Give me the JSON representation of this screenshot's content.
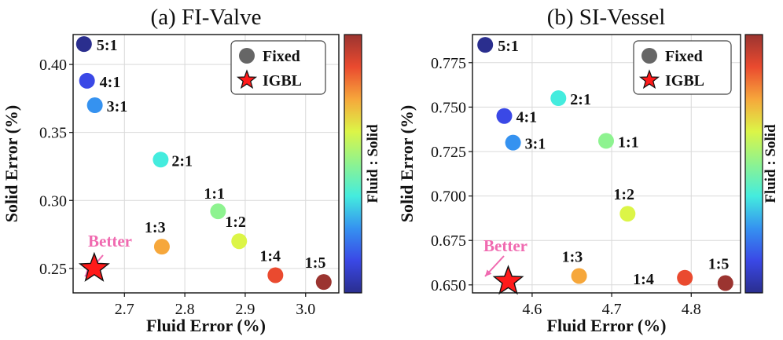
{
  "chart_data": [
    {
      "type": "scatter",
      "title": "(a) FI-Valve",
      "xlabel": "Fluid Error (%)",
      "ylabel": "Solid Error (%)",
      "xlim": [
        2.615,
        3.055
      ],
      "ylim": [
        0.232,
        0.422
      ],
      "xticks": [
        2.7,
        2.8,
        2.9,
        3.0
      ],
      "xtick_labels": [
        "2.7",
        "2.8",
        "2.9",
        "3.0"
      ],
      "yticks": [
        0.25,
        0.3,
        0.35,
        0.4
      ],
      "ytick_labels": [
        "0.25",
        "0.30",
        "0.35",
        "0.40"
      ],
      "colorbar_label": "Fluid : Solid",
      "legend": {
        "position": "top-right",
        "entries": [
          "Fixed",
          "IGBL"
        ]
      },
      "annotation": "Better",
      "series": [
        {
          "name": "Fixed",
          "points": [
            {
              "label": "5:1",
              "x": 2.633,
              "y": 0.415,
              "color": "#2a2e8e"
            },
            {
              "label": "4:1",
              "x": 2.638,
              "y": 0.388,
              "color": "#3a48e6"
            },
            {
              "label": "3:1",
              "x": 2.651,
              "y": 0.37,
              "color": "#3592f0"
            },
            {
              "label": "2:1",
              "x": 2.76,
              "y": 0.33,
              "color": "#44ecde"
            },
            {
              "label": "1:1",
              "x": 2.855,
              "y": 0.292,
              "color": "#8ef390"
            },
            {
              "label": "1:2",
              "x": 2.89,
              "y": 0.27,
              "color": "#dcf547"
            },
            {
              "label": "1:3",
              "x": 2.762,
              "y": 0.266,
              "color": "#f6a73b"
            },
            {
              "label": "1:4",
              "x": 2.95,
              "y": 0.245,
              "color": "#ea4a2f"
            },
            {
              "label": "1:5",
              "x": 3.03,
              "y": 0.24,
              "color": "#9b3430"
            }
          ]
        },
        {
          "name": "IGBL",
          "points": [
            {
              "label": "",
              "x": 2.65,
              "y": 0.25,
              "color": "#ff1a1a"
            }
          ]
        }
      ]
    },
    {
      "type": "scatter",
      "title": "(b) SI-Vessel",
      "xlabel": "Fluid Error (%)",
      "ylabel": "Solid Error (%)",
      "xlim": [
        4.525,
        4.862
      ],
      "ylim": [
        0.6455,
        0.7908
      ],
      "xticks": [
        4.6,
        4.7,
        4.8
      ],
      "xtick_labels": [
        "4.6",
        "4.7",
        "4.8"
      ],
      "yticks": [
        0.65,
        0.675,
        0.7,
        0.725,
        0.75,
        0.775
      ],
      "ytick_labels": [
        "0.650",
        "0.675",
        "0.700",
        "0.725",
        "0.750",
        "0.775"
      ],
      "colorbar_label": "Fluid : Solid",
      "legend": {
        "position": "top-right",
        "entries": [
          "Fixed",
          "IGBL"
        ]
      },
      "annotation": "Better",
      "series": [
        {
          "name": "Fixed",
          "points": [
            {
              "label": "5:1",
              "x": 4.541,
              "y": 0.785,
              "color": "#2a2e8e"
            },
            {
              "label": "4:1",
              "x": 4.565,
              "y": 0.745,
              "color": "#3a48e6"
            },
            {
              "label": "3:1",
              "x": 4.576,
              "y": 0.73,
              "color": "#3592f0"
            },
            {
              "label": "2:1",
              "x": 4.633,
              "y": 0.755,
              "color": "#44ecde"
            },
            {
              "label": "1:1",
              "x": 4.693,
              "y": 0.731,
              "color": "#8ef390"
            },
            {
              "label": "1:2",
              "x": 4.72,
              "y": 0.69,
              "color": "#dcf547"
            },
            {
              "label": "1:3",
              "x": 4.659,
              "y": 0.655,
              "color": "#f6a73b"
            },
            {
              "label": "1:4",
              "x": 4.792,
              "y": 0.654,
              "color": "#ea4a2f"
            },
            {
              "label": "1:5",
              "x": 4.843,
              "y": 0.651,
              "color": "#9b3430"
            }
          ]
        },
        {
          "name": "IGBL",
          "points": [
            {
              "label": "",
              "x": 4.57,
              "y": 0.652,
              "color": "#ff1a1a"
            }
          ]
        }
      ]
    }
  ],
  "colormap": [
    "#2a2e8e",
    "#3a48e6",
    "#3592f0",
    "#44ecde",
    "#8ef390",
    "#dcf547",
    "#f6a73b",
    "#ea4a2f",
    "#9b3430"
  ],
  "colors": {
    "legend_marker": "#666666",
    "better_arrow": "#f06ab0",
    "star_fill": "#ff1a1a"
  }
}
